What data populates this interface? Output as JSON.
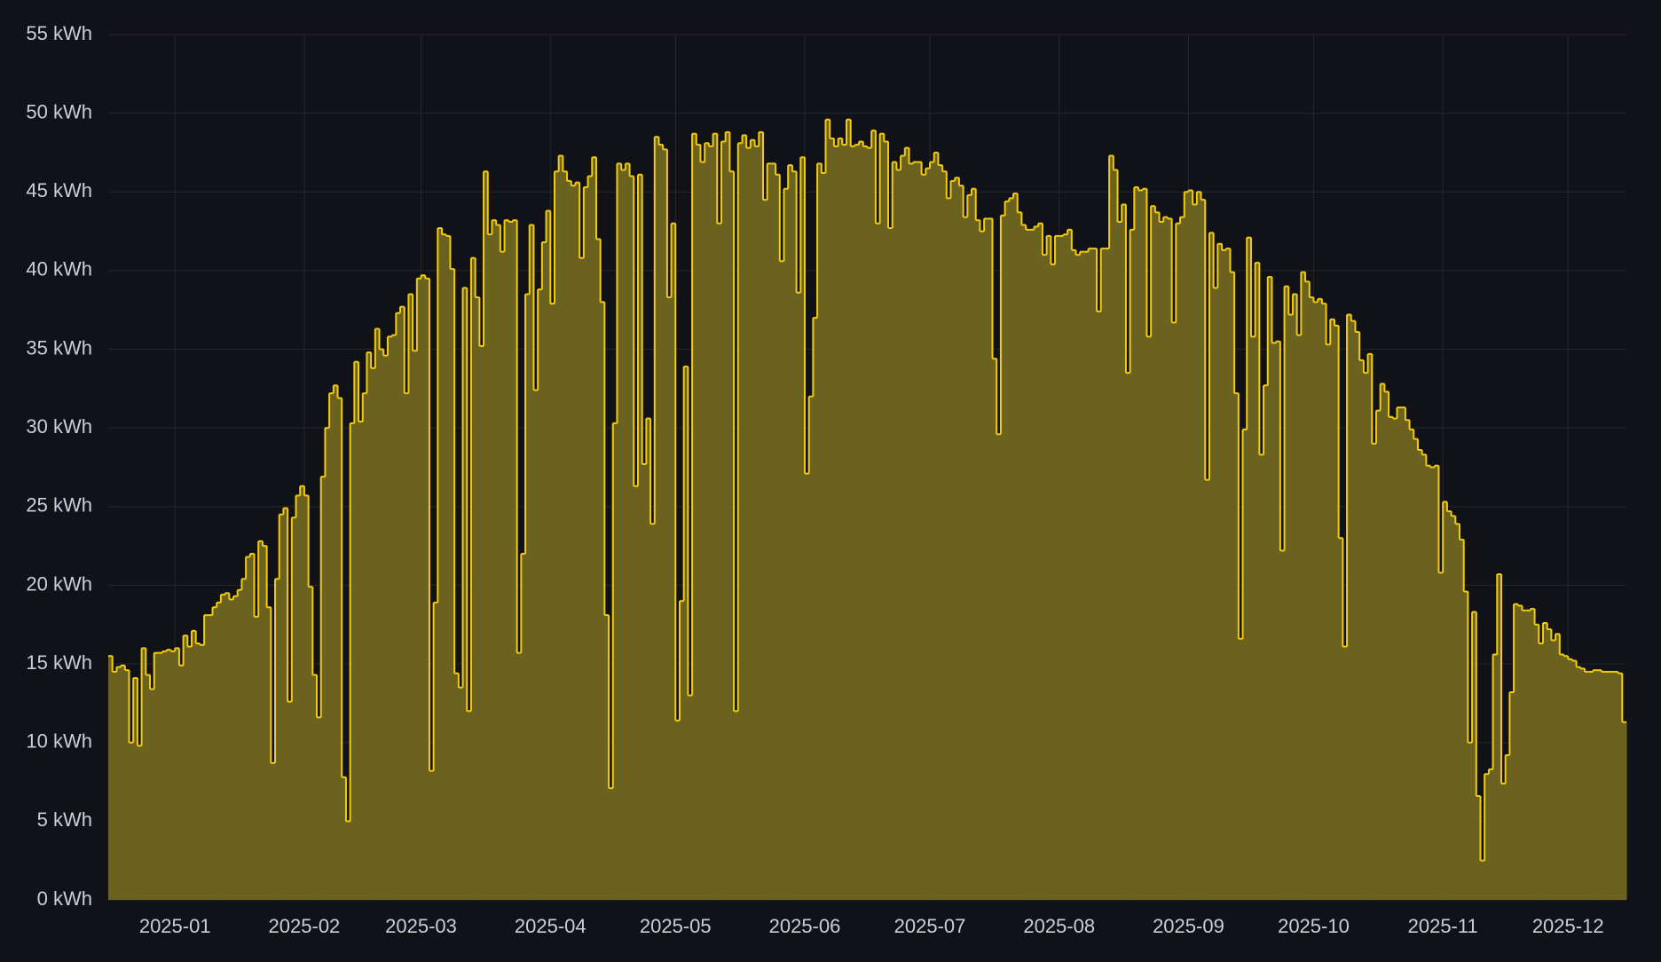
{
  "chart_data": {
    "type": "step",
    "color": "#f2cc0c",
    "fill": "#6b6220",
    "values": [
      15.5,
      14.5,
      14.8,
      14.9,
      14.6,
      10,
      14.1,
      9.8,
      16,
      14.3,
      13.4,
      15.7,
      15.7,
      15.8,
      15.9,
      15.8,
      16,
      14.9,
      16.8,
      16.1,
      17.1,
      16.3,
      16.2,
      18.1,
      18.1,
      18.6,
      18.9,
      19.4,
      19.5,
      19.1,
      19.3,
      19.7,
      20.4,
      21.8,
      22,
      18,
      22.8,
      22.5,
      18.6,
      8.7,
      20.4,
      24.5,
      24.9,
      12.6,
      24.3,
      25.7,
      26.3,
      25.7,
      19.9,
      14.3,
      11.6,
      26.9,
      30,
      32.2,
      32.7,
      31.9,
      7.8,
      5,
      30.3,
      34.2,
      30.4,
      32.2,
      34.8,
      33.8,
      36.3,
      35,
      34.6,
      35.8,
      35.9,
      37.3,
      37.7,
      32.2,
      38.5,
      34.9,
      39.5,
      39.7,
      39.5,
      8.2,
      18.9,
      42.7,
      42.3,
      42.2,
      40.1,
      14.4,
      13.5,
      38.9,
      12,
      40.8,
      38.3,
      35.2,
      46.3,
      42.3,
      43.2,
      42.9,
      41.2,
      43.2,
      43.1,
      43.2,
      15.7,
      22,
      38.5,
      42.9,
      32.4,
      38.8,
      41.8,
      43.8,
      37.9,
      46.3,
      47.3,
      46.3,
      45.7,
      45.4,
      45.6,
      40.8,
      45.3,
      46,
      47.2,
      42,
      38,
      18.1,
      7.1,
      30.3,
      46.8,
      46.4,
      46.8,
      46,
      26.3,
      46.1,
      27.7,
      30.6,
      23.9,
      48.5,
      48,
      47.7,
      38.3,
      43,
      11.4,
      19,
      33.9,
      13,
      48.7,
      48,
      46.9,
      48.1,
      47.9,
      48.7,
      43,
      48.2,
      48.8,
      46.3,
      12,
      48.1,
      48.6,
      47.8,
      48.3,
      47.9,
      48.8,
      44.5,
      46.8,
      46.8,
      46.1,
      40.6,
      45.2,
      46.7,
      46.3,
      38.6,
      47.2,
      27.1,
      32,
      37,
      46.8,
      46.2,
      49.6,
      48.4,
      47.9,
      48.4,
      48,
      49.6,
      47.9,
      48,
      48.2,
      47.9,
      47.8,
      48.9,
      43,
      48.7,
      48.2,
      42.7,
      46.9,
      46.4,
      47.3,
      47.8,
      46.8,
      46.9,
      46.9,
      46.1,
      46.5,
      46.9,
      47.5,
      46.7,
      46.3,
      44.6,
      45.7,
      45.9,
      45.4,
      43.4,
      44.8,
      45.2,
      43.2,
      42.5,
      43.3,
      43.3,
      34.4,
      29.6,
      43.5,
      44.4,
      44.6,
      44.9,
      43.7,
      42.9,
      42.6,
      42.6,
      42.8,
      43,
      41,
      42.2,
      40.4,
      42.2,
      42.2,
      42.3,
      42.6,
      41.3,
      41,
      41.2,
      41.2,
      41.4,
      41.4,
      37.4,
      41.4,
      41.4,
      47.3,
      46.4,
      43.1,
      44.2,
      33.5,
      42.6,
      45.3,
      45.1,
      45.2,
      35.8,
      44.1,
      43.7,
      43.1,
      43.4,
      43.3,
      36.7,
      43,
      43.4,
      45,
      45.1,
      44.2,
      45,
      44.5,
      26.7,
      42.4,
      38.9,
      41.7,
      41.3,
      41.4,
      39.9,
      32.2,
      16.6,
      29.9,
      42.1,
      35.8,
      40.5,
      28.3,
      32.7,
      39.6,
      35.4,
      35.5,
      22.2,
      39,
      37.2,
      38.5,
      35.9,
      39.9,
      39.3,
      38.3,
      38,
      38.2,
      37.9,
      35.3,
      36.9,
      36.5,
      23,
      16.1,
      37.2,
      36.8,
      36.1,
      34.3,
      33.5,
      34.7,
      29,
      31.1,
      32.8,
      32.3,
      30.7,
      30.6,
      31.3,
      31.3,
      30.5,
      29.9,
      29.3,
      28.6,
      28.3,
      27.6,
      27.5,
      27.6,
      20.8,
      25.3,
      24.7,
      24.4,
      23.9,
      22.9,
      19.6,
      10,
      18.3,
      6.6,
      2.5,
      8,
      8.3,
      15.6,
      20.7,
      7.4,
      9.2,
      13.2,
      18.8,
      18.7,
      18.4,
      18.4,
      18.5,
      17.5,
      16.3,
      17.6,
      17.2,
      16.5,
      16.9,
      15.6,
      15.5,
      15.3,
      15.2,
      14.8,
      14.7,
      14.5,
      14.5,
      14.6,
      14.6,
      14.5,
      14.5,
      14.5,
      14.5,
      14.4,
      11.3
    ],
    "xlim": [
      0,
      364
    ],
    "xticks": [
      {
        "value": 16,
        "label": "2025-01"
      },
      {
        "value": 47,
        "label": "2025-02"
      },
      {
        "value": 75,
        "label": "2025-03"
      },
      {
        "value": 106,
        "label": "2025-04"
      },
      {
        "value": 136,
        "label": "2025-05"
      },
      {
        "value": 167,
        "label": "2025-06"
      },
      {
        "value": 197,
        "label": "2025-07"
      },
      {
        "value": 228,
        "label": "2025-08"
      },
      {
        "value": 259,
        "label": "2025-09"
      },
      {
        "value": 289,
        "label": "2025-10"
      },
      {
        "value": 320,
        "label": "2025-11"
      },
      {
        "value": 350,
        "label": "2025-12"
      }
    ],
    "ylim": [
      0,
      55
    ],
    "yticks": [
      {
        "value": 0,
        "label": "0 kWh"
      },
      {
        "value": 5,
        "label": "5 kWh"
      },
      {
        "value": 10,
        "label": "10 kWh"
      },
      {
        "value": 15,
        "label": "15 kWh"
      },
      {
        "value": 20,
        "label": "20 kWh"
      },
      {
        "value": 25,
        "label": "25 kWh"
      },
      {
        "value": 30,
        "label": "30 kWh"
      },
      {
        "value": 35,
        "label": "35 kWh"
      },
      {
        "value": 40,
        "label": "40 kWh"
      },
      {
        "value": 45,
        "label": "45 kWh"
      },
      {
        "value": 50,
        "label": "50 kWh"
      },
      {
        "value": 55,
        "label": "55 kWh"
      }
    ],
    "grid": true
  }
}
